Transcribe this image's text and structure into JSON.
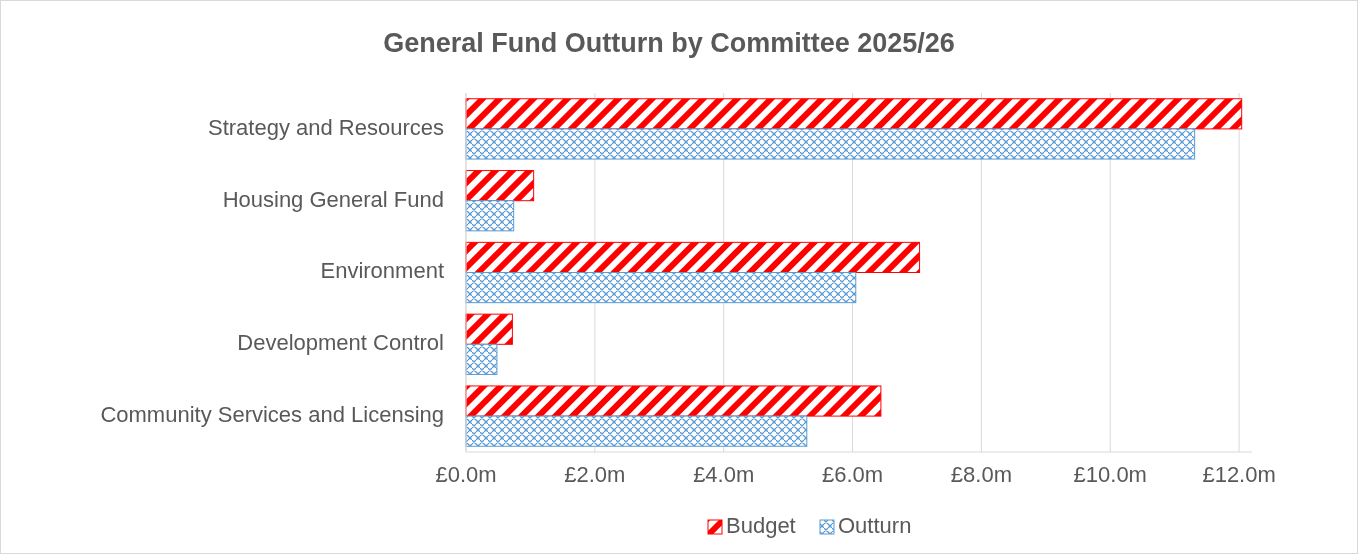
{
  "chart_data": {
    "type": "bar",
    "orientation": "horizontal",
    "title": "General Fund Outturn by Committee 2025/26",
    "categories": [
      "Strategy and Resources",
      "Housing General Fund",
      "Environment",
      "Development Control",
      "Community Services and Licensing"
    ],
    "series": [
      {
        "name": "Budget",
        "color": "#ff0000",
        "values": [
          12.04,
          1.05,
          7.04,
          0.72,
          6.44
        ]
      },
      {
        "name": "Outturn",
        "color": "#5b9bd5",
        "values": [
          11.31,
          0.74,
          6.05,
          0.48,
          5.29
        ]
      }
    ],
    "xlim": [
      0,
      12.2
    ],
    "xticks": [
      {
        "value": 0,
        "label": "£0.0m"
      },
      {
        "value": 2,
        "label": "£2.0m"
      },
      {
        "value": 4,
        "label": "£4.0m"
      },
      {
        "value": 6,
        "label": "£6.0m"
      },
      {
        "value": 8,
        "label": "£8.0m"
      },
      {
        "value": 10,
        "label": "£10.0m"
      },
      {
        "value": 12,
        "label": "£12.0m"
      }
    ],
    "grid": "x",
    "legend": "bottom"
  }
}
